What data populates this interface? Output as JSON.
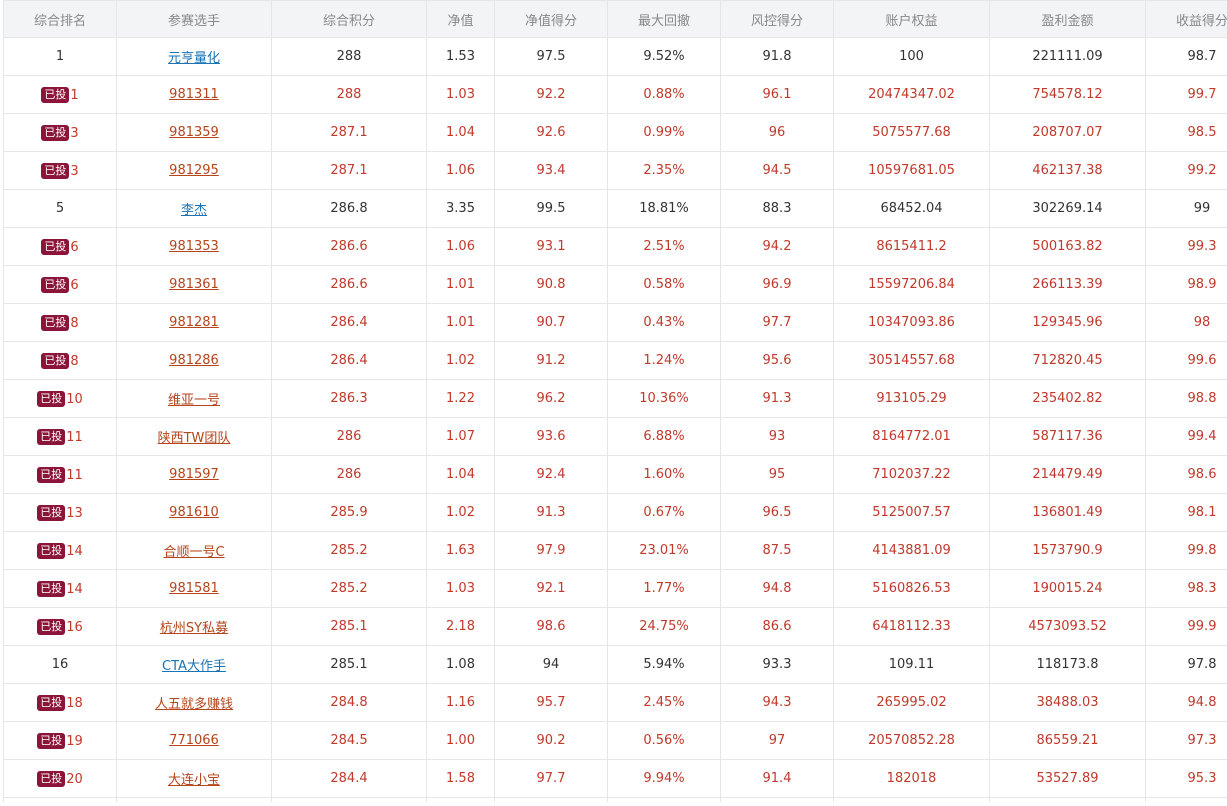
{
  "table": {
    "headers": [
      "综合排名",
      "参赛选手",
      "综合积分",
      "净值",
      "净值得分",
      "最大回撤",
      "风控得分",
      "账户权益",
      "盈利金额",
      "收益得分"
    ],
    "badge_label": "已投",
    "rows": [
      {
        "invested": false,
        "rank": "1",
        "player": "元亨量化",
        "score": "288",
        "nav": "1.53",
        "nav_score": "97.5",
        "max_drawdown": "9.52%",
        "risk_score": "91.8",
        "equity": "100",
        "profit": "221111.09",
        "return_score": "98.7"
      },
      {
        "invested": true,
        "rank": "1",
        "player": "981311",
        "score": "288",
        "nav": "1.03",
        "nav_score": "92.2",
        "max_drawdown": "0.88%",
        "risk_score": "96.1",
        "equity": "20474347.02",
        "profit": "754578.12",
        "return_score": "99.7"
      },
      {
        "invested": true,
        "rank": "3",
        "player": "981359",
        "score": "287.1",
        "nav": "1.04",
        "nav_score": "92.6",
        "max_drawdown": "0.99%",
        "risk_score": "96",
        "equity": "5075577.68",
        "profit": "208707.07",
        "return_score": "98.5"
      },
      {
        "invested": true,
        "rank": "3",
        "player": "981295",
        "score": "287.1",
        "nav": "1.06",
        "nav_score": "93.4",
        "max_drawdown": "2.35%",
        "risk_score": "94.5",
        "equity": "10597681.05",
        "profit": "462137.38",
        "return_score": "99.2"
      },
      {
        "invested": false,
        "rank": "5",
        "player": "李杰",
        "score": "286.8",
        "nav": "3.35",
        "nav_score": "99.5",
        "max_drawdown": "18.81%",
        "risk_score": "88.3",
        "equity": "68452.04",
        "profit": "302269.14",
        "return_score": "99"
      },
      {
        "invested": true,
        "rank": "6",
        "player": "981353",
        "score": "286.6",
        "nav": "1.06",
        "nav_score": "93.1",
        "max_drawdown": "2.51%",
        "risk_score": "94.2",
        "equity": "8615411.2",
        "profit": "500163.82",
        "return_score": "99.3"
      },
      {
        "invested": true,
        "rank": "6",
        "player": "981361",
        "score": "286.6",
        "nav": "1.01",
        "nav_score": "90.8",
        "max_drawdown": "0.58%",
        "risk_score": "96.9",
        "equity": "15597206.84",
        "profit": "266113.39",
        "return_score": "98.9"
      },
      {
        "invested": true,
        "rank": "8",
        "player": "981281",
        "score": "286.4",
        "nav": "1.01",
        "nav_score": "90.7",
        "max_drawdown": "0.43%",
        "risk_score": "97.7",
        "equity": "10347093.86",
        "profit": "129345.96",
        "return_score": "98"
      },
      {
        "invested": true,
        "rank": "8",
        "player": "981286",
        "score": "286.4",
        "nav": "1.02",
        "nav_score": "91.2",
        "max_drawdown": "1.24%",
        "risk_score": "95.6",
        "equity": "30514557.68",
        "profit": "712820.45",
        "return_score": "99.6"
      },
      {
        "invested": true,
        "rank": "10",
        "player": "维亚一号",
        "score": "286.3",
        "nav": "1.22",
        "nav_score": "96.2",
        "max_drawdown": "10.36%",
        "risk_score": "91.3",
        "equity": "913105.29",
        "profit": "235402.82",
        "return_score": "98.8"
      },
      {
        "invested": true,
        "rank": "11",
        "player": "陕西TW团队",
        "score": "286",
        "nav": "1.07",
        "nav_score": "93.6",
        "max_drawdown": "6.88%",
        "risk_score": "93",
        "equity": "8164772.01",
        "profit": "587117.36",
        "return_score": "99.4"
      },
      {
        "invested": true,
        "rank": "11",
        "player": "981597",
        "score": "286",
        "nav": "1.04",
        "nav_score": "92.4",
        "max_drawdown": "1.60%",
        "risk_score": "95",
        "equity": "7102037.22",
        "profit": "214479.49",
        "return_score": "98.6"
      },
      {
        "invested": true,
        "rank": "13",
        "player": "981610",
        "score": "285.9",
        "nav": "1.02",
        "nav_score": "91.3",
        "max_drawdown": "0.67%",
        "risk_score": "96.5",
        "equity": "5125007.57",
        "profit": "136801.49",
        "return_score": "98.1"
      },
      {
        "invested": true,
        "rank": "14",
        "player": "合顺一号C",
        "score": "285.2",
        "nav": "1.63",
        "nav_score": "97.9",
        "max_drawdown": "23.01%",
        "risk_score": "87.5",
        "equity": "4143881.09",
        "profit": "1573790.9",
        "return_score": "99.8"
      },
      {
        "invested": true,
        "rank": "14",
        "player": "981581",
        "score": "285.2",
        "nav": "1.03",
        "nav_score": "92.1",
        "max_drawdown": "1.77%",
        "risk_score": "94.8",
        "equity": "5160826.53",
        "profit": "190015.24",
        "return_score": "98.3"
      },
      {
        "invested": true,
        "rank": "16",
        "player": "杭州SY私募",
        "score": "285.1",
        "nav": "2.18",
        "nav_score": "98.6",
        "max_drawdown": "24.75%",
        "risk_score": "86.6",
        "equity": "6418112.33",
        "profit": "4573093.52",
        "return_score": "99.9"
      },
      {
        "invested": false,
        "rank": "16",
        "player": "CTA大作手",
        "score": "285.1",
        "nav": "1.08",
        "nav_score": "94",
        "max_drawdown": "5.94%",
        "risk_score": "93.3",
        "equity": "109.11",
        "profit": "118173.8",
        "return_score": "97.8"
      },
      {
        "invested": true,
        "rank": "18",
        "player": "人五就多赚钱",
        "score": "284.8",
        "nav": "1.16",
        "nav_score": "95.7",
        "max_drawdown": "2.45%",
        "risk_score": "94.3",
        "equity": "265995.02",
        "profit": "38488.03",
        "return_score": "94.8"
      },
      {
        "invested": true,
        "rank": "19",
        "player": "771066",
        "score": "284.5",
        "nav": "1.00",
        "nav_score": "90.2",
        "max_drawdown": "0.56%",
        "risk_score": "97",
        "equity": "20570852.28",
        "profit": "86559.21",
        "return_score": "97.3"
      },
      {
        "invested": true,
        "rank": "20",
        "player": "大连小宝",
        "score": "284.4",
        "nav": "1.58",
        "nav_score": "97.7",
        "max_drawdown": "9.94%",
        "risk_score": "91.4",
        "equity": "182018",
        "profit": "53527.89",
        "return_score": "95.3"
      }
    ]
  },
  "colors": {
    "header_bg": "#f3f4f6",
    "header_text": "#888888",
    "invested_text": "#c0392b",
    "invested_link": "#b5451b",
    "plain_link": "#1a73b5",
    "badge_bg": "#8b1538",
    "border": "#e6e6e6"
  }
}
